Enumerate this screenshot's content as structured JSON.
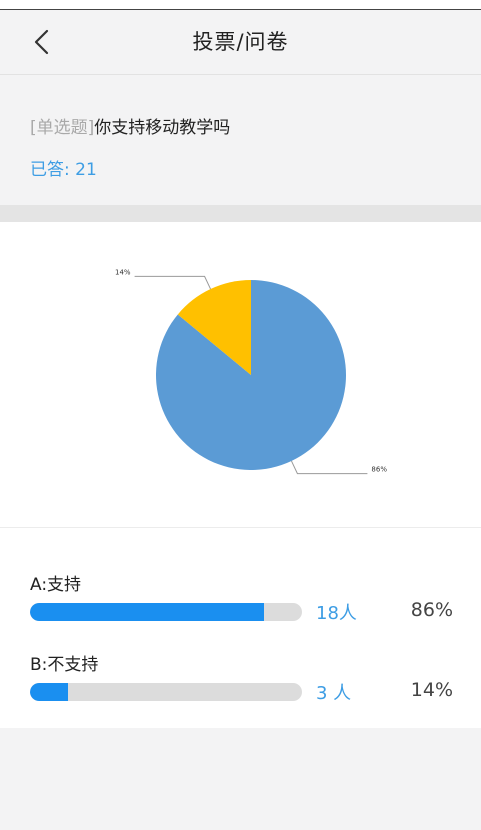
{
  "header": {
    "title": "投票/问卷"
  },
  "question": {
    "tag": "[单选题]",
    "text": "你支持移动教学吗",
    "answered": "已答: 21"
  },
  "chart_data": {
    "type": "pie",
    "slices": [
      {
        "value": 86,
        "label": "86%",
        "color": "#5b9bd5"
      },
      {
        "value": 14,
        "label": "14%",
        "color": "#ffc000"
      }
    ]
  },
  "options": [
    {
      "label": "A:支持",
      "count": "18人",
      "percent": "86%",
      "fraction": 0.86
    },
    {
      "label": "B:不支持",
      "count": "3 人",
      "percent": "14%",
      "fraction": 0.14
    }
  ],
  "colors": {
    "accent": "#3d9de4",
    "bar_fill": "#1a8ff0",
    "bar_track": "#dcdcdc"
  }
}
